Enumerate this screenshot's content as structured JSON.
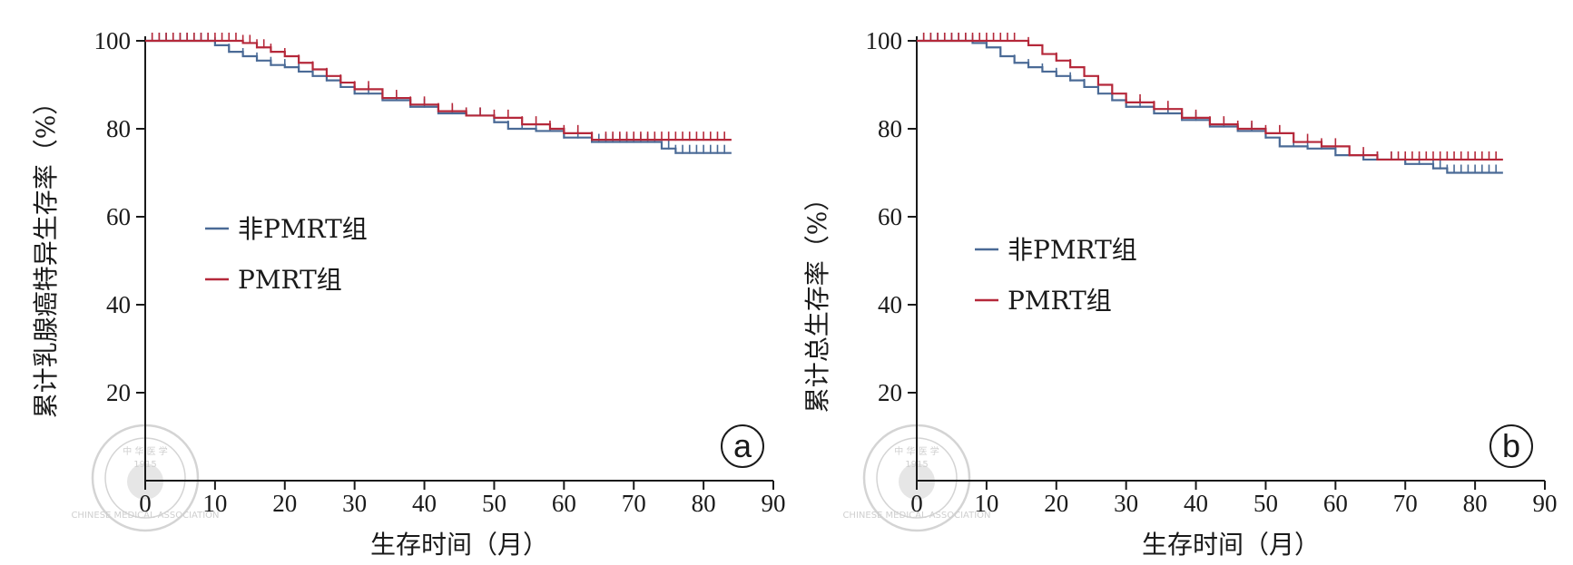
{
  "colors": {
    "non_pmrt": "#4a6a96",
    "pmrt": "#b5283a",
    "axis": "#1a1a1a",
    "watermark": "#d4d4d4"
  },
  "chart_data": [
    {
      "type": "line",
      "step": true,
      "panel_label": "a",
      "xlabel": "生存时间（月）",
      "ylabel": "累计乳腺癌特异生存率（%）",
      "xlim": [
        0,
        90
      ],
      "ylim": [
        0,
        100
      ],
      "xticks": [
        "0",
        "10",
        "20",
        "30",
        "40",
        "50",
        "60",
        "70",
        "80",
        "90"
      ],
      "yticks": [
        "20",
        "40",
        "60",
        "80",
        "100"
      ],
      "grid": false,
      "legend_position": "center-left",
      "series": [
        {
          "name": "非PMRT组",
          "color_key": "non_pmrt",
          "x": [
            0,
            8,
            10,
            12,
            14,
            16,
            18,
            20,
            22,
            24,
            26,
            28,
            30,
            34,
            38,
            42,
            46,
            50,
            52,
            56,
            60,
            64,
            70,
            74,
            76,
            84
          ],
          "y": [
            100,
            100,
            99,
            97.5,
            96.5,
            95.5,
            94.5,
            94,
            93,
            92,
            91,
            89.5,
            88,
            86.5,
            85,
            83.5,
            83,
            81.5,
            80,
            79.5,
            78,
            77,
            77,
            75.5,
            74.5,
            74.5
          ],
          "censor_x": [
            1,
            2,
            3,
            4,
            5,
            6,
            7,
            8,
            9,
            10,
            12,
            14,
            16,
            18,
            20,
            22,
            24,
            26,
            28,
            30,
            32,
            34,
            36,
            38,
            40,
            42,
            44,
            46,
            48,
            50,
            52,
            54,
            56,
            58,
            60,
            62,
            64,
            65,
            66,
            67,
            68,
            69,
            70,
            71,
            72,
            73,
            75,
            76,
            77,
            78,
            79,
            80,
            81,
            82,
            83
          ]
        },
        {
          "name": "PMRT组",
          "color_key": "pmrt",
          "x": [
            0,
            12,
            14,
            16,
            18,
            20,
            22,
            24,
            26,
            28,
            30,
            34,
            38,
            42,
            46,
            50,
            54,
            58,
            60,
            64,
            84
          ],
          "y": [
            100,
            100,
            99.5,
            98.5,
            97.5,
            96.5,
            95,
            93.5,
            92,
            90.5,
            89,
            87,
            85.5,
            84,
            83,
            82.5,
            81,
            80,
            79,
            77.5,
            77.5
          ],
          "censor_x": [
            1,
            2,
            3,
            4,
            5,
            6,
            7,
            8,
            9,
            10,
            11,
            12,
            13,
            14,
            15,
            16,
            17,
            18,
            20,
            22,
            24,
            26,
            28,
            30,
            32,
            34,
            36,
            38,
            40,
            42,
            44,
            46,
            48,
            50,
            52,
            54,
            56,
            58,
            60,
            62,
            64,
            66,
            67,
            68,
            69,
            70,
            71,
            72,
            73,
            74,
            75,
            76,
            77,
            78,
            79,
            80,
            81,
            82,
            83
          ]
        }
      ]
    },
    {
      "type": "line",
      "step": true,
      "panel_label": "b",
      "xlabel": "生存时间（月）",
      "ylabel": "累计总生存率（%）",
      "xlim": [
        0,
        90
      ],
      "ylim": [
        0,
        100
      ],
      "xticks": [
        "0",
        "10",
        "20",
        "30",
        "40",
        "50",
        "60",
        "70",
        "80",
        "90"
      ],
      "yticks": [
        "20",
        "40",
        "60",
        "80",
        "100"
      ],
      "grid": false,
      "legend_position": "center-left",
      "series": [
        {
          "name": "非PMRT组",
          "color_key": "non_pmrt",
          "x": [
            0,
            6,
            8,
            10,
            12,
            14,
            16,
            18,
            20,
            22,
            24,
            26,
            28,
            30,
            34,
            38,
            42,
            46,
            50,
            52,
            56,
            60,
            64,
            70,
            74,
            76,
            84
          ],
          "y": [
            100,
            100,
            99.5,
            98.5,
            96.5,
            95,
            94,
            93,
            92,
            91,
            89.5,
            88,
            86.5,
            85,
            83.5,
            82,
            80.5,
            79.5,
            78,
            76,
            75.5,
            74,
            73,
            72,
            71,
            70,
            70
          ],
          "censor_x": [
            1,
            2,
            3,
            4,
            5,
            6,
            7,
            8,
            10,
            12,
            14,
            16,
            18,
            20,
            22,
            24,
            26,
            28,
            30,
            32,
            34,
            36,
            38,
            40,
            42,
            44,
            46,
            48,
            50,
            52,
            54,
            56,
            58,
            60,
            62,
            64,
            66,
            68,
            70,
            72,
            74,
            75,
            76,
            77,
            78,
            79,
            80,
            81,
            82,
            83
          ]
        },
        {
          "name": "PMRT组",
          "color_key": "pmrt",
          "x": [
            0,
            14,
            16,
            18,
            20,
            22,
            24,
            26,
            28,
            30,
            34,
            38,
            42,
            46,
            50,
            54,
            58,
            62,
            66,
            84
          ],
          "y": [
            100,
            100,
            99,
            97,
            95.5,
            94,
            92,
            90,
            88,
            86,
            84.5,
            82.5,
            81,
            80,
            79,
            77,
            76,
            74,
            73,
            73
          ],
          "censor_x": [
            1,
            2,
            3,
            4,
            5,
            6,
            7,
            8,
            9,
            10,
            11,
            12,
            13,
            14,
            16,
            18,
            20,
            22,
            24,
            26,
            28,
            30,
            32,
            34,
            36,
            38,
            40,
            42,
            44,
            46,
            48,
            50,
            52,
            54,
            56,
            58,
            60,
            62,
            64,
            66,
            68,
            69,
            70,
            71,
            72,
            73,
            74,
            75,
            76,
            77,
            78,
            79,
            80,
            81,
            82,
            83
          ]
        }
      ]
    }
  ],
  "watermark": {
    "top_chars": "中 华 医 学",
    "ring_text": "CHINESE MEDICAL ASSOCIATION",
    "year": "1915"
  }
}
